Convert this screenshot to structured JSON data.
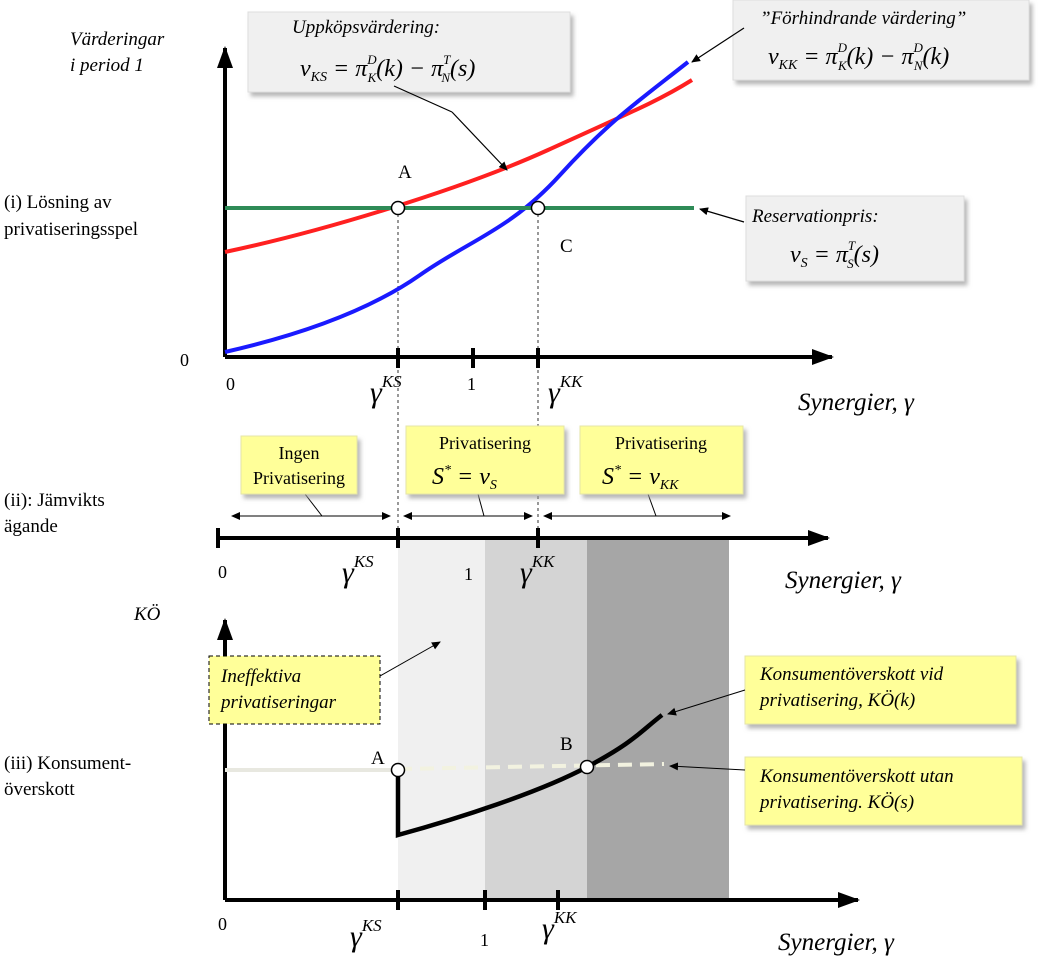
{
  "panel1": {
    "y_label_line1": "Värderingar",
    "y_label_line2": "i period 1",
    "row_label_line1": "(i) Lösning av",
    "row_label_line2": "privatiseringsspel",
    "origin_y": "0",
    "origin_x": "0",
    "tick_one": "1",
    "gamma_ks": "γ",
    "gamma_ks_sup": "KS",
    "gamma_kk": "γ",
    "gamma_kk_sup": "KK",
    "x_axis_label": "Synergier, γ",
    "point_a": "A",
    "point_c": "C",
    "box_uppkop": {
      "title": "Uppköpsvärdering:",
      "formula": "v_KS = π_K^D(k) − π_N^T(s)"
    },
    "box_forhindrande": {
      "title": "”Förhindrande värdering”",
      "formula": "v_KK = π_K^D(k) − π_N^D(k)"
    },
    "box_reservation": {
      "title": "Reservationpris:",
      "formula": "v_S = π_S^T(s)"
    }
  },
  "panel2": {
    "row_label_line1": "(ii): Jämvikts",
    "row_label_line2": "ägande",
    "origin_x": "0",
    "tick_one": "1",
    "gamma_ks": "γ",
    "gamma_ks_sup": "KS",
    "gamma_kk": "γ",
    "gamma_kk_sup": "KK",
    "x_axis_label": "Synergier, γ",
    "box_ingen": {
      "line1": "Ingen",
      "line2": "Privatisering"
    },
    "box_priv_s": {
      "line1": "Privatisering",
      "formula": "S* = v_S"
    },
    "box_priv_kk": {
      "line1": "Privatisering",
      "formula": "S* = v_KK"
    }
  },
  "panel3": {
    "y_label": "KÖ",
    "row_label_line1": "(iii) Konsument-",
    "row_label_line2": "överskott",
    "origin_x": "0",
    "tick_one": "1",
    "gamma_ks": "γ",
    "gamma_ks_sup": "KS",
    "gamma_kk": "γ",
    "gamma_kk_sup": "KK",
    "x_axis_label": "Synergier, γ",
    "point_a": "A",
    "point_b": "B",
    "box_ineffektiva": {
      "line1": "Ineffektiva",
      "line2": "privatiseringar"
    },
    "box_ko_k": {
      "line1": "Konsumentöverskott vid",
      "line2": "privatisering, KÖ(k)"
    },
    "box_ko_s": {
      "line1": "Konsumentöverskott utan",
      "line2": "privatisering. KÖ(s)"
    }
  },
  "colors": {
    "red_curve": "#ff2020",
    "blue_curve": "#1a1aff",
    "green_line": "#2e8b57",
    "yellow_box": "#ffff99",
    "grey_box": "#f0f0f0",
    "shade_light": "#f0f0f0",
    "shade_mid": "#d4d4d4",
    "shade_dark": "#a6a6a6"
  }
}
